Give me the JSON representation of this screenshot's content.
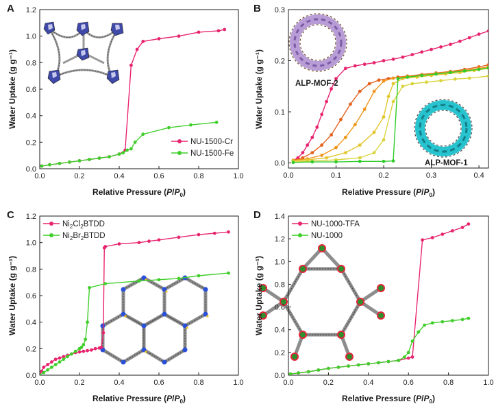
{
  "colors": {
    "pink": "#e8246f",
    "green": "#3fcf2a",
    "orange_dark": "#e4611c",
    "orange": "#f0951c",
    "yellow": "#e3c62c",
    "light_yellow": "#d9d33c",
    "lime": "#2fcc2a"
  },
  "chart_data": [
    {
      "type": "line",
      "panel": "A",
      "xlabel_main": "Relative Pressure (",
      "xlabel_p": "P",
      "xlabel_slash": "/",
      "xlabel_p0": "P",
      "xlabel_sub0": "0",
      "xlabel_close": ")",
      "ylabel": "Water Uptake (g g⁻¹)",
      "xlim": [
        0.0,
        1.0
      ],
      "ylim": [
        0.0,
        1.2
      ],
      "xticks": [
        "0.0",
        "0.2",
        "0.4",
        "0.6",
        "0.8",
        "1.0"
      ],
      "yticks": [
        "0.0",
        "0.2",
        "0.4",
        "0.6",
        "0.8",
        "1.0",
        "1.2"
      ],
      "legend_position": "bottom-right",
      "series": [
        {
          "name": "NU-1500-Cr",
          "color": "#e8246f",
          "x": [
            0.01,
            0.05,
            0.1,
            0.15,
            0.2,
            0.25,
            0.3,
            0.35,
            0.4,
            0.43,
            0.46,
            0.49,
            0.52,
            0.6,
            0.7,
            0.8,
            0.9,
            0.93
          ],
          "y": [
            0.02,
            0.03,
            0.04,
            0.05,
            0.06,
            0.07,
            0.08,
            0.09,
            0.11,
            0.14,
            0.78,
            0.9,
            0.96,
            0.98,
            1.0,
            1.03,
            1.04,
            1.05
          ]
        },
        {
          "name": "NU-1500-Fe",
          "color": "#3fcf2a",
          "x": [
            0.01,
            0.05,
            0.1,
            0.15,
            0.2,
            0.25,
            0.3,
            0.35,
            0.4,
            0.42,
            0.44,
            0.46,
            0.48,
            0.52,
            0.65,
            0.76,
            0.89
          ],
          "y": [
            0.02,
            0.03,
            0.04,
            0.05,
            0.06,
            0.07,
            0.08,
            0.09,
            0.11,
            0.12,
            0.14,
            0.15,
            0.2,
            0.26,
            0.31,
            0.33,
            0.35
          ]
        }
      ]
    },
    {
      "type": "line",
      "panel": "B",
      "xlabel_main": "Relative Pressure (",
      "xlabel_p": "P",
      "xlabel_slash": "/",
      "xlabel_p0": "P",
      "xlabel_sub0": "0",
      "xlabel_close": ")",
      "ylabel": "Water Uptake (g g⁻¹)",
      "xlim": [
        0.0,
        0.42
      ],
      "ylim": [
        -0.01,
        0.3
      ],
      "xticks": [
        "0.0",
        "0.1",
        "0.2",
        "0.3",
        "0.4"
      ],
      "yticks": [
        "0.0",
        "0.1",
        "0.2",
        "0.3"
      ],
      "annotations": [
        "ALP-MOF-2",
        "ALP-MOF-1"
      ],
      "series": [
        {
          "color": "#e8246f",
          "x": [
            0.01,
            0.02,
            0.03,
            0.04,
            0.05,
            0.06,
            0.07,
            0.08,
            0.09,
            0.1,
            0.12,
            0.14,
            0.16,
            0.18,
            0.2,
            0.22,
            0.24,
            0.26,
            0.28,
            0.3,
            0.32,
            0.34,
            0.36,
            0.38,
            0.4,
            0.42
          ],
          "y": [
            0.005,
            0.01,
            0.02,
            0.035,
            0.05,
            0.07,
            0.095,
            0.12,
            0.145,
            0.165,
            0.185,
            0.19,
            0.193,
            0.196,
            0.2,
            0.203,
            0.207,
            0.212,
            0.217,
            0.222,
            0.227,
            0.232,
            0.238,
            0.245,
            0.252,
            0.258
          ]
        },
        {
          "color": "#e4611c",
          "x": [
            0.01,
            0.03,
            0.05,
            0.07,
            0.09,
            0.11,
            0.13,
            0.15,
            0.17,
            0.19,
            0.21,
            0.23,
            0.25,
            0.28,
            0.31,
            0.34,
            0.37,
            0.4,
            0.42
          ],
          "y": [
            0.005,
            0.01,
            0.02,
            0.035,
            0.055,
            0.085,
            0.115,
            0.14,
            0.155,
            0.162,
            0.165,
            0.168,
            0.17,
            0.173,
            0.176,
            0.179,
            0.183,
            0.188,
            0.192
          ]
        },
        {
          "color": "#f0951c",
          "x": [
            0.01,
            0.04,
            0.07,
            0.1,
            0.12,
            0.14,
            0.16,
            0.18,
            0.2,
            0.22,
            0.25,
            0.28,
            0.31,
            0.34,
            0.37,
            0.4,
            0.42
          ],
          "y": [
            0.005,
            0.008,
            0.015,
            0.03,
            0.05,
            0.075,
            0.105,
            0.14,
            0.16,
            0.166,
            0.169,
            0.172,
            0.175,
            0.178,
            0.181,
            0.185,
            0.188
          ]
        },
        {
          "color": "#e3c62c",
          "x": [
            0.01,
            0.04,
            0.08,
            0.12,
            0.15,
            0.18,
            0.2,
            0.21,
            0.22,
            0.24,
            0.27,
            0.3,
            0.33,
            0.36,
            0.39,
            0.42
          ],
          "y": [
            0.004,
            0.006,
            0.01,
            0.02,
            0.035,
            0.06,
            0.09,
            0.13,
            0.155,
            0.165,
            0.168,
            0.171,
            0.174,
            0.177,
            0.181,
            0.185
          ]
        },
        {
          "color": "#d9d33c",
          "x": [
            0.01,
            0.05,
            0.1,
            0.15,
            0.18,
            0.2,
            0.22,
            0.24,
            0.26,
            0.29,
            0.32,
            0.35,
            0.38,
            0.42
          ],
          "y": [
            0.002,
            0.004,
            0.006,
            0.01,
            0.02,
            0.045,
            0.12,
            0.15,
            0.155,
            0.158,
            0.161,
            0.164,
            0.166,
            0.17
          ]
        },
        {
          "color": "#2fcc2a",
          "x": [
            0.01,
            0.05,
            0.1,
            0.15,
            0.2,
            0.22,
            0.23,
            0.25,
            0.28,
            0.31,
            0.34,
            0.37,
            0.4,
            0.42
          ],
          "y": [
            0.001,
            0.002,
            0.002,
            0.003,
            0.003,
            0.004,
            0.165,
            0.168,
            0.171,
            0.174,
            0.177,
            0.18,
            0.183,
            0.186
          ]
        }
      ]
    },
    {
      "type": "line",
      "panel": "C",
      "xlabel_main": "Relative Pressure (",
      "xlabel_p": "P",
      "xlabel_slash": "/",
      "xlabel_p0": "P",
      "xlabel_sub0": "0",
      "xlabel_close": ")",
      "ylabel": "Water Uptake (g g⁻¹)",
      "xlim": [
        0.0,
        1.0
      ],
      "ylim": [
        0.0,
        1.2
      ],
      "xticks": [
        "0.0",
        "0.2",
        "0.4",
        "0.6",
        "0.8",
        "1.0"
      ],
      "yticks": [
        "0.0",
        "0.2",
        "0.4",
        "0.6",
        "0.8",
        "1.0",
        "1.2"
      ],
      "legend_position": "top-left",
      "series": [
        {
          "name": "Ni2Cl2BTDD",
          "legend_parts": [
            "Ni",
            "2",
            "Cl",
            "2",
            "BTDD"
          ],
          "color": "#e8246f",
          "x": [
            0.0,
            0.01,
            0.02,
            0.04,
            0.06,
            0.08,
            0.1,
            0.12,
            0.14,
            0.16,
            0.18,
            0.2,
            0.22,
            0.24,
            0.26,
            0.28,
            0.3,
            0.31,
            0.32,
            0.325,
            0.33,
            0.4,
            0.5,
            0.55,
            0.6,
            0.7,
            0.8,
            0.88,
            0.95
          ],
          "y": [
            0.0,
            0.03,
            0.06,
            0.08,
            0.1,
            0.12,
            0.13,
            0.14,
            0.15,
            0.16,
            0.17,
            0.175,
            0.18,
            0.185,
            0.19,
            0.2,
            0.205,
            0.21,
            0.32,
            0.96,
            0.97,
            0.99,
            1.0,
            1.01,
            1.02,
            1.04,
            1.06,
            1.07,
            1.08
          ]
        },
        {
          "name": "Ni2Br2BTDD",
          "legend_parts": [
            "Ni",
            "2",
            "Br",
            "2",
            "BTDD"
          ],
          "color": "#3fcf2a",
          "x": [
            0.0,
            0.02,
            0.04,
            0.06,
            0.08,
            0.1,
            0.12,
            0.14,
            0.16,
            0.18,
            0.2,
            0.21,
            0.22,
            0.23,
            0.24,
            0.25,
            0.33,
            0.5,
            0.6,
            0.7,
            0.8,
            0.95
          ],
          "y": [
            0.0,
            0.02,
            0.04,
            0.06,
            0.08,
            0.1,
            0.12,
            0.14,
            0.16,
            0.18,
            0.2,
            0.21,
            0.23,
            0.27,
            0.4,
            0.66,
            0.69,
            0.71,
            0.72,
            0.73,
            0.75,
            0.77
          ]
        }
      ]
    },
    {
      "type": "line",
      "panel": "D",
      "xlabel_main": "Relative Pressure (",
      "xlabel_p": "P",
      "xlabel_slash": "/",
      "xlabel_p0": "P",
      "xlabel_sub0": "0",
      "xlabel_close": ")",
      "ylabel": "Water Uptake (g g⁻¹)",
      "xlim": [
        0.0,
        1.0
      ],
      "ylim": [
        0.0,
        1.4
      ],
      "xticks": [
        "0.0",
        "0.2",
        "0.4",
        "0.6",
        "0.8",
        "1.0"
      ],
      "yticks": [
        "0.0",
        "0.2",
        "0.4",
        "0.6",
        "0.8",
        "1.0",
        "1.2",
        "1.4"
      ],
      "legend_position": "top-left",
      "series": [
        {
          "name": "NU-1000-TFA",
          "color": "#e8246f",
          "x": [
            0.01,
            0.05,
            0.1,
            0.15,
            0.2,
            0.25,
            0.3,
            0.35,
            0.4,
            0.45,
            0.5,
            0.55,
            0.6,
            0.62,
            0.67,
            0.72,
            0.77,
            0.82,
            0.87,
            0.9
          ],
          "y": [
            0.01,
            0.02,
            0.03,
            0.045,
            0.06,
            0.07,
            0.08,
            0.09,
            0.1,
            0.11,
            0.12,
            0.13,
            0.15,
            0.16,
            1.19,
            1.21,
            1.24,
            1.27,
            1.3,
            1.33
          ]
        },
        {
          "name": "NU-1000",
          "color": "#3fcf2a",
          "x": [
            0.01,
            0.05,
            0.1,
            0.15,
            0.2,
            0.25,
            0.3,
            0.35,
            0.4,
            0.45,
            0.5,
            0.55,
            0.58,
            0.6,
            0.62,
            0.65,
            0.68,
            0.72,
            0.77,
            0.82,
            0.87,
            0.9
          ],
          "y": [
            0.01,
            0.02,
            0.03,
            0.045,
            0.06,
            0.07,
            0.08,
            0.09,
            0.1,
            0.11,
            0.12,
            0.13,
            0.16,
            0.2,
            0.3,
            0.38,
            0.44,
            0.46,
            0.47,
            0.48,
            0.49,
            0.5
          ]
        }
      ]
    }
  ]
}
